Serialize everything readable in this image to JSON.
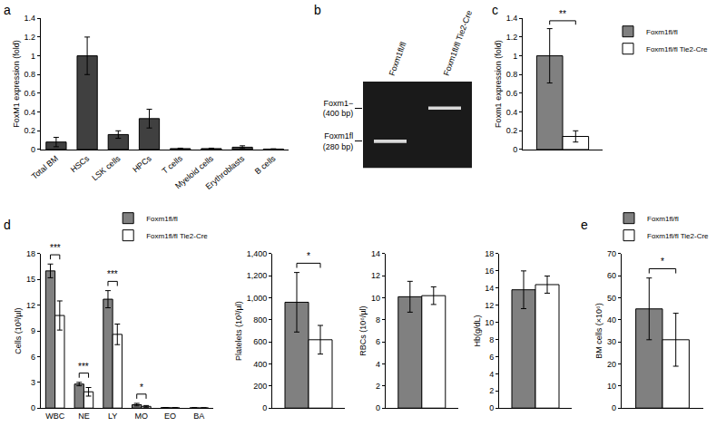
{
  "chart_data": [
    {
      "type": "bar",
      "title": "a",
      "categories": [
        "Total BM",
        "HSCs",
        "LSK cells",
        "HPCs",
        "T cells",
        "Myeloid cells",
        "Erythroblasts",
        "B cells"
      ],
      "values": [
        0.08,
        1.0,
        0.16,
        0.33,
        0.01,
        0.01,
        0.025,
        0.005
      ],
      "errors": [
        0.05,
        0.2,
        0.04,
        0.1,
        0.005,
        0.005,
        0.015,
        0.003
      ],
      "color": "#404040",
      "ylabel": "FoxM1 expression (fold)",
      "ylim": [
        0,
        1.4
      ],
      "yticks": [
        0,
        0.2,
        0.4,
        0.6,
        0.8,
        1,
        1.2,
        1.4
      ],
      "grid": false
    },
    {
      "type": "gel",
      "title": "b",
      "lanes": [
        "Foxm1fl/fl",
        "Foxm1fl/fl Tie2-Cre"
      ],
      "bands": [
        {
          "lane": 1,
          "size": 400,
          "label_lines": [
            "Foxm1−",
            "(400 bp)"
          ]
        },
        {
          "lane": 0,
          "size": 280,
          "label_lines": [
            "Foxm1fl",
            "(280 bp)"
          ]
        }
      ]
    },
    {
      "type": "bar",
      "title": "c",
      "categories": [
        null
      ],
      "series": [
        {
          "name": "Foxm1fl/fl",
          "color": "#808080",
          "values": [
            1.0
          ],
          "errors": [
            0.29
          ]
        },
        {
          "name": "Foxm1fl/fl Tie2-Cre",
          "color": "#ffffff",
          "values": [
            0.14
          ],
          "errors": [
            0.06
          ]
        }
      ],
      "ylabel": "Foxm1 expression (fold)",
      "ylim": [
        0,
        1.4
      ],
      "yticks": [
        0,
        0.2,
        0.4,
        0.6,
        0.8,
        1,
        1.2,
        1.4
      ],
      "legend": "right",
      "tick_labels": "y",
      "grid": false,
      "annotations": [
        {
          "text": "**",
          "x": 0
        }
      ]
    },
    {
      "type": "bar",
      "title": "d",
      "categories": [
        "WBC",
        "NE",
        "LY",
        "MO",
        "EO",
        "BA"
      ],
      "series": [
        {
          "name": "Foxm1fl/fl",
          "color": "#808080",
          "values": [
            16,
            2.8,
            12.7,
            0.4,
            0.05,
            0.03
          ],
          "errors": [
            0.8,
            0.2,
            1.0,
            0.15,
            0.02,
            0.02
          ]
        },
        {
          "name": "Foxm1fl/fl Tie2-Cre",
          "color": "#ffffff",
          "values": [
            10.8,
            1.9,
            8.6,
            0.2,
            0.03,
            0.02
          ],
          "errors": [
            1.7,
            0.5,
            1.2,
            0.1,
            0.02,
            0.01
          ]
        }
      ],
      "ylabel": "Cells (10³/µl)",
      "ylim": [
        0,
        18
      ],
      "yticks": [
        0,
        3,
        6,
        9,
        12,
        15,
        18
      ],
      "legend": "top right",
      "grid": false,
      "annotations": [
        {
          "text": "***",
          "x": 0
        },
        {
          "text": "***",
          "x": 1
        },
        {
          "text": "***",
          "x": 2
        },
        {
          "text": "*",
          "x": 3
        }
      ]
    },
    {
      "type": "bar",
      "categories": [
        null
      ],
      "series": [
        {
          "name": "Foxm1fl/fl",
          "color": "#808080",
          "values": [
            960
          ],
          "errors": [
            270
          ]
        },
        {
          "name": "Foxm1fl/fl Tie2-Cre",
          "color": "#ffffff",
          "values": [
            620
          ],
          "errors": [
            130
          ]
        }
      ],
      "ylabel": "Platelets (10³/µl)",
      "ylim": [
        0,
        1400
      ],
      "yticks": [
        0,
        200,
        400,
        600,
        800,
        {
          "value": 1000,
          "label": "1,000"
        },
        {
          "value": 1200,
          "label": "1,200"
        },
        {
          "value": 1400,
          "label": "1,400"
        }
      ],
      "tick_labels": "y",
      "grid": false,
      "annotations": [
        {
          "text": "*",
          "x": 0
        }
      ]
    },
    {
      "type": "bar",
      "categories": [
        null
      ],
      "series": [
        {
          "name": "Foxm1fl/fl",
          "color": "#808080",
          "values": [
            10.1
          ],
          "errors": [
            1.4
          ]
        },
        {
          "name": "Foxm1fl/fl Tie2-Cre",
          "color": "#ffffff",
          "values": [
            10.2
          ],
          "errors": [
            0.8
          ]
        }
      ],
      "ylabel": "RBCs (10⁶/µl)",
      "ylim": [
        0,
        14
      ],
      "yticks": [
        0,
        2,
        4,
        6,
        8,
        10,
        12,
        14
      ],
      "tick_labels": "y",
      "grid": false
    },
    {
      "type": "bar",
      "categories": [
        null
      ],
      "series": [
        {
          "name": "Foxm1fl/fl",
          "color": "#808080",
          "values": [
            13.8
          ],
          "errors": [
            2.2
          ]
        },
        {
          "name": "Foxm1fl/fl Tie2-Cre",
          "color": "#ffffff",
          "values": [
            14.4
          ],
          "errors": [
            1.0
          ]
        }
      ],
      "ylabel": "Hb(g/dL)",
      "ylim": [
        0,
        18
      ],
      "yticks": [
        0,
        2,
        4,
        6,
        8,
        10,
        12,
        14,
        16,
        18
      ],
      "tick_labels": "y",
      "grid": false
    },
    {
      "type": "bar",
      "title": "e",
      "categories": [
        null
      ],
      "series": [
        {
          "name": "Foxm1fl/fl",
          "color": "#808080",
          "values": [
            45
          ],
          "errors": [
            14
          ]
        },
        {
          "name": "Foxm1fl/fl Tie2-Cre",
          "color": "#ffffff",
          "values": [
            31
          ],
          "errors": [
            12
          ]
        }
      ],
      "ylabel": "BM cells (×10⁶)",
      "ylim": [
        0,
        70
      ],
      "yticks": [
        0,
        10,
        20,
        30,
        40,
        50,
        60,
        70
      ],
      "legend": "top",
      "tick_labels": "y",
      "grid": false,
      "annotations": [
        {
          "text": "*",
          "x": 0
        }
      ]
    }
  ]
}
